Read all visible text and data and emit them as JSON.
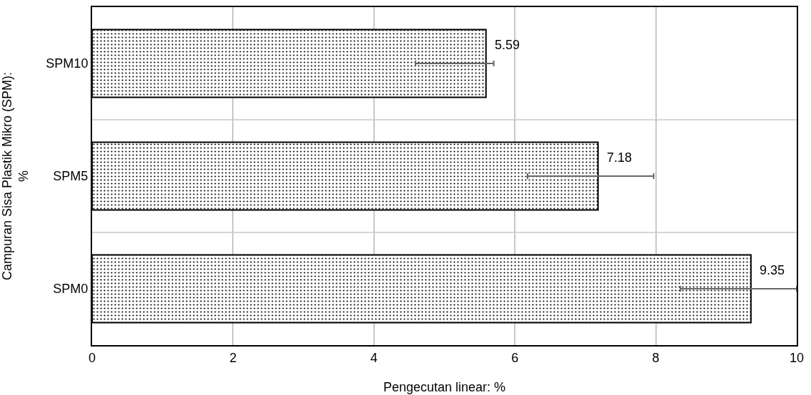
{
  "chart_data": {
    "type": "bar",
    "orientation": "horizontal",
    "xlabel": "Pengecutan linear: %",
    "ylabel": "Campuran Sisa Plastik Mikro (SPM):\n%",
    "categories": [
      "SPM10",
      "SPM5",
      "SPM0"
    ],
    "values": [
      5.59,
      7.18,
      9.35
    ],
    "color": "#000000",
    "errors": [
      [
        4.59,
        5.7
      ],
      [
        6.18,
        7.97
      ],
      [
        8.35,
        10.0
      ]
    ],
    "data_labels": true,
    "xlim": [
      0,
      10
    ],
    "xticks": [
      0,
      2,
      4,
      6,
      8,
      10
    ],
    "grid": true,
    "legend": false
  }
}
